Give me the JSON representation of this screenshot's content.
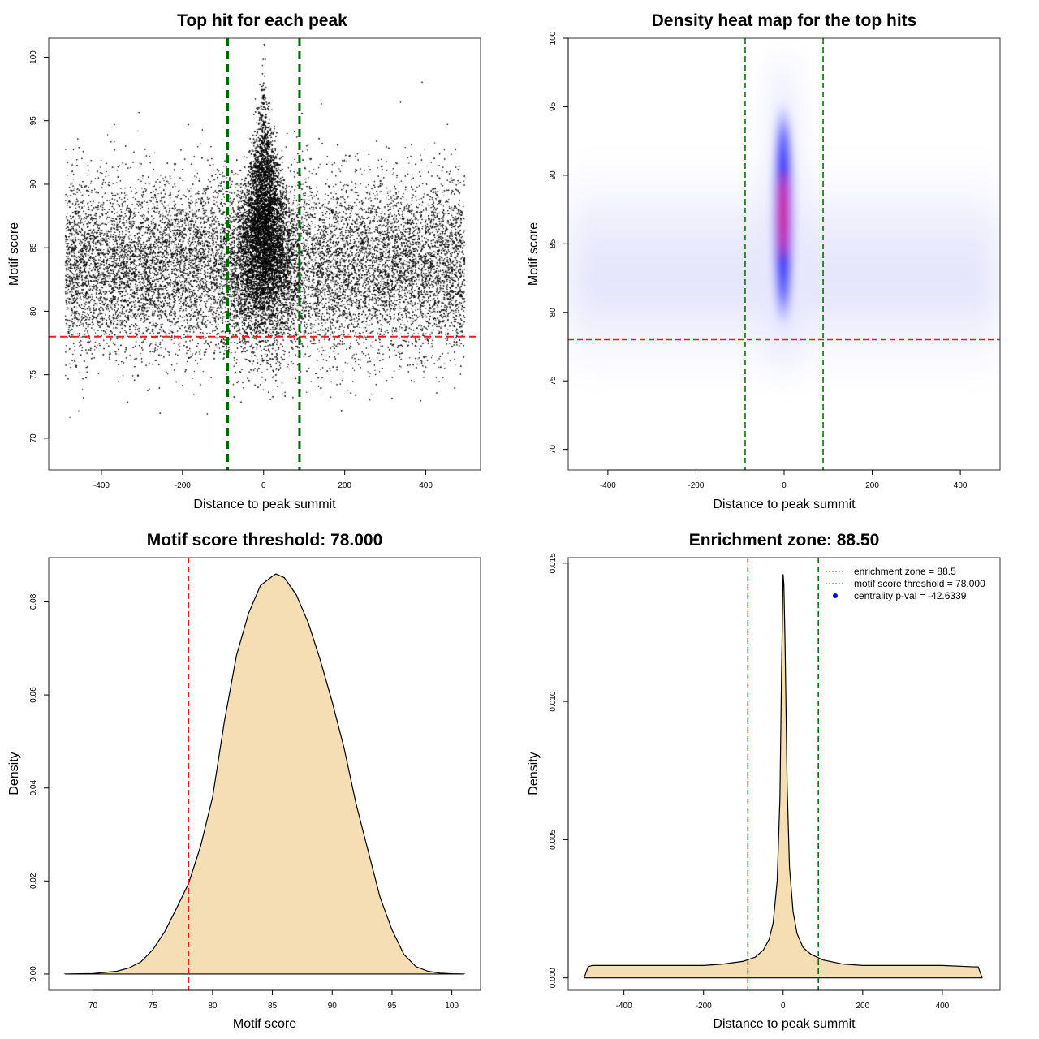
{
  "colors": {
    "green": "#006400",
    "red": "#dd2222",
    "fill": "#f5deb3",
    "heat_blue": "#0000ff",
    "heat_red": "#ff0000"
  },
  "chart_data": [
    {
      "id": "p1",
      "type": "scatter",
      "title": "Top hit for each peak",
      "xlabel": "Distance to peak summit",
      "ylabel": "Motif score",
      "xlim": [
        -530,
        535
      ],
      "ylim": [
        67.5,
        101.5
      ],
      "xticks": [
        -400,
        -200,
        0,
        200,
        400
      ],
      "yticks": [
        70,
        75,
        80,
        85,
        90,
        95,
        100
      ],
      "vlines": [
        -88.5,
        88.5
      ],
      "hline": 78,
      "points_model": {
        "x_range": [
          -490,
          495
        ],
        "background_score_mean": 83.5,
        "background_score_sd": 3.4,
        "central_zone": [
          -88.5,
          88.5
        ],
        "central_score_mean": 86,
        "central_score_sd": 4.2,
        "n_background": 26000,
        "n_central": 14000
      }
    },
    {
      "id": "p2",
      "type": "heatmap",
      "title": "Density heat map for the top hits",
      "xlabel": "Distance to peak summit",
      "ylabel": "Motif score",
      "xlim": [
        -490,
        490
      ],
      "ylim": [
        68.5,
        100
      ],
      "xticks": [
        -400,
        -200,
        0,
        200,
        400
      ],
      "yticks": [
        70,
        75,
        80,
        85,
        90,
        95,
        100
      ],
      "vlines": [
        -88.5,
        88.5
      ],
      "hline": 78,
      "hotspot": {
        "x": 0,
        "y": 88.5,
        "x_spread": 10,
        "y_spread": 4.5
      }
    },
    {
      "id": "p3",
      "type": "area",
      "title": "Motif score threshold: 78.000",
      "xlabel": "Motif score",
      "ylabel": "Density",
      "xlim": [
        66.3,
        102.4
      ],
      "ylim": [
        -0.0035,
        0.0895
      ],
      "xticks": [
        70,
        75,
        80,
        85,
        90,
        95,
        100
      ],
      "yticks": [
        0.0,
        0.02,
        0.04,
        0.06,
        0.08
      ],
      "ytick_labels": [
        "0.00",
        "0.02",
        "0.04",
        "0.06",
        "0.08"
      ],
      "vline": 78,
      "x": [
        67.7,
        70,
        72,
        73,
        74,
        75,
        76,
        77,
        78,
        79,
        80,
        81,
        82,
        83,
        84,
        85,
        85.3,
        86,
        87,
        88,
        89,
        90,
        91,
        92,
        93,
        94,
        95,
        96,
        97,
        98,
        99,
        100,
        101
      ],
      "y": [
        0.0,
        0.0001,
        0.0006,
        0.0013,
        0.0026,
        0.0052,
        0.0091,
        0.0142,
        0.0195,
        0.0275,
        0.038,
        0.0545,
        0.0685,
        0.0775,
        0.0835,
        0.0855,
        0.086,
        0.0852,
        0.0815,
        0.0755,
        0.0675,
        0.0585,
        0.0485,
        0.0365,
        0.0265,
        0.0165,
        0.0095,
        0.0042,
        0.0016,
        0.0006,
        0.0002,
        5e-05,
        0.0
      ]
    },
    {
      "id": "p4",
      "type": "area",
      "title": "Enrichment zone: 88.50",
      "xlabel": "Distance to peak summit",
      "ylabel": "Density",
      "xlim": [
        -540,
        545
      ],
      "ylim": [
        -0.00045,
        0.0152
      ],
      "xticks": [
        -400,
        -200,
        0,
        200,
        400
      ],
      "yticks": [
        0.0,
        0.005,
        0.01,
        0.015
      ],
      "ytick_labels": [
        "0.000",
        "0.005",
        "0.010",
        "0.015"
      ],
      "vlines": [
        -88.5,
        88.5
      ],
      "x": [
        -500,
        -490,
        -480,
        -400,
        -300,
        -200,
        -150,
        -100,
        -70,
        -50,
        -35,
        -25,
        -15,
        -8,
        -4,
        0,
        2,
        5,
        10,
        16,
        25,
        35,
        50,
        70,
        100,
        150,
        200,
        300,
        400,
        480,
        490,
        500
      ],
      "y": [
        0.0,
        0.0004,
        0.00045,
        0.00045,
        0.00045,
        0.00045,
        0.0005,
        0.0006,
        0.00075,
        0.001,
        0.0014,
        0.002,
        0.0035,
        0.0065,
        0.011,
        0.0146,
        0.0142,
        0.012,
        0.007,
        0.004,
        0.0024,
        0.0016,
        0.0011,
        0.00085,
        0.00065,
        0.0005,
        0.00045,
        0.00045,
        0.00045,
        0.0004,
        0.0004,
        0.0
      ],
      "legend": [
        {
          "label": "enrichment zone = 88.5",
          "style": "dotted-green"
        },
        {
          "label": "motif score threshold = 78.000",
          "style": "dotted-red"
        },
        {
          "label": "centrality p-val = -42.6339",
          "style": "blue-point"
        }
      ]
    }
  ]
}
